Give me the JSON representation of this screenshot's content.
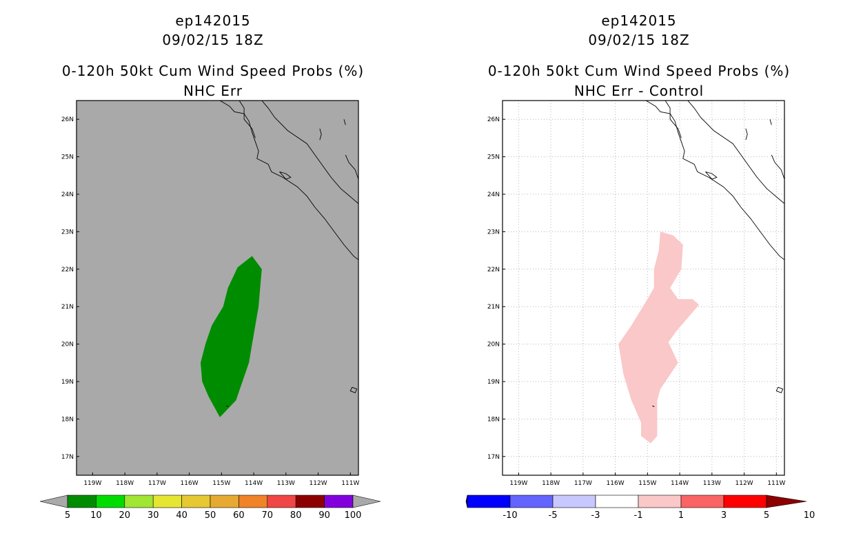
{
  "chart_data": [
    {
      "type": "map",
      "title_lines": [
        "ep142015",
        "09/02/15 18Z",
        "0-120h 50kt Cum Wind Speed Probs (%)",
        "NHC Err"
      ],
      "lon_range": [
        -119.5,
        -110.75
      ],
      "lat_range": [
        16.5,
        26.5
      ],
      "x_ticks": [
        "119W",
        "118W",
        "117W",
        "116W",
        "115W",
        "114W",
        "113W",
        "112W",
        "111W"
      ],
      "y_ticks": [
        "17N",
        "18N",
        "19N",
        "20N",
        "21N",
        "22N",
        "23N",
        "24N",
        "25N",
        "26N"
      ],
      "background_color": "#a9a9a9",
      "grid": false,
      "shaded_region": {
        "category": "5-10",
        "color": "#008c00",
        "outline_lonlat": [
          [
            -115.05,
            18.05
          ],
          [
            -115.4,
            18.6
          ],
          [
            -115.6,
            19.0
          ],
          [
            -115.65,
            19.5
          ],
          [
            -115.5,
            20.0
          ],
          [
            -115.3,
            20.5
          ],
          [
            -114.95,
            21.0
          ],
          [
            -114.8,
            21.5
          ],
          [
            -114.5,
            22.05
          ],
          [
            -114.05,
            22.35
          ],
          [
            -113.75,
            22.0
          ],
          [
            -113.8,
            21.5
          ],
          [
            -113.85,
            21.0
          ],
          [
            -113.95,
            20.5
          ],
          [
            -114.05,
            20.0
          ],
          [
            -114.15,
            19.5
          ],
          [
            -114.35,
            19.0
          ],
          [
            -114.55,
            18.5
          ]
        ]
      },
      "colorbar": {
        "labels": [
          "5",
          "10",
          "20",
          "30",
          "40",
          "50",
          "60",
          "70",
          "80",
          "90",
          "100"
        ],
        "colors": [
          "#a9a9a9",
          "#008c00",
          "#00dc00",
          "#a0e632",
          "#e6e632",
          "#e6c832",
          "#e6aa32",
          "#f08228",
          "#f04646",
          "#8c0000",
          "#8200dc",
          "#a9a9a9"
        ]
      }
    },
    {
      "type": "map",
      "title_lines": [
        "ep142015",
        "09/02/15 18Z",
        "0-120h 50kt Cum Wind Speed Probs (%)",
        "NHC Err - Control"
      ],
      "lon_range": [
        -119.5,
        -110.75
      ],
      "lat_range": [
        16.5,
        26.5
      ],
      "x_ticks": [
        "119W",
        "118W",
        "117W",
        "116W",
        "115W",
        "114W",
        "113W",
        "112W",
        "111W"
      ],
      "y_ticks": [
        "17N",
        "18N",
        "19N",
        "20N",
        "21N",
        "22N",
        "23N",
        "24N",
        "25N",
        "26N"
      ],
      "background_color": "#ffffff",
      "grid": true,
      "shaded_region": {
        "category": "1 to 3",
        "color": "#fac8c8",
        "outline_lonlat": [
          [
            -114.9,
            17.35
          ],
          [
            -115.2,
            17.55
          ],
          [
            -115.2,
            17.9
          ],
          [
            -115.5,
            18.5
          ],
          [
            -115.75,
            19.2
          ],
          [
            -115.9,
            20.0
          ],
          [
            -115.5,
            20.5
          ],
          [
            -115.0,
            21.2
          ],
          [
            -114.8,
            21.5
          ],
          [
            -114.8,
            22.0
          ],
          [
            -114.65,
            22.5
          ],
          [
            -114.6,
            23.0
          ],
          [
            -114.2,
            22.9
          ],
          [
            -113.9,
            22.65
          ],
          [
            -113.95,
            22.0
          ],
          [
            -114.3,
            21.5
          ],
          [
            -114.05,
            21.2
          ],
          [
            -113.6,
            21.2
          ],
          [
            -113.4,
            21.05
          ],
          [
            -113.7,
            20.75
          ],
          [
            -114.1,
            20.35
          ],
          [
            -114.35,
            20.05
          ],
          [
            -114.05,
            19.5
          ],
          [
            -114.6,
            18.8
          ],
          [
            -114.7,
            18.5
          ],
          [
            -114.7,
            18.0
          ],
          [
            -114.7,
            17.55
          ]
        ]
      },
      "colorbar": {
        "labels": [
          "-10",
          "-5",
          "-3",
          "-1",
          "1",
          "3",
          "5",
          "10"
        ],
        "colors": [
          "#0000aa",
          "#0000ff",
          "#6464ff",
          "#c8c8ff",
          "#ffffff",
          "#fac8c8",
          "#fa6464",
          "#ff0000",
          "#8c0000"
        ]
      }
    }
  ]
}
